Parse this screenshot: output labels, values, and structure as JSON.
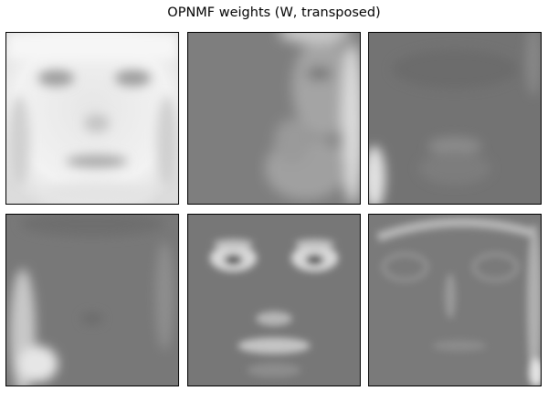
{
  "title": "OPNMF weights (W, transposed)",
  "colors": {
    "background_gray": "#7f7f7f",
    "highlight_white": "#ffffff",
    "dark_gray": "#6a6a6a"
  },
  "panels": [
    {
      "index": 1,
      "depicts": "bright full face"
    },
    {
      "index": 2,
      "depicts": "right-side face highlight"
    },
    {
      "index": 3,
      "depicts": "dark face with chin edge"
    },
    {
      "index": 4,
      "depicts": "left jaw highlight"
    },
    {
      "index": 5,
      "depicts": "eyes and mouth highlight"
    },
    {
      "index": 6,
      "depicts": "hairline and right edge highlight"
    }
  ]
}
